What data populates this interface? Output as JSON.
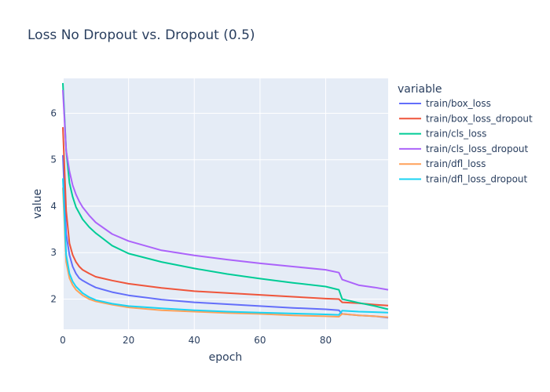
{
  "chart_data": {
    "type": "line",
    "title": "Loss No Dropout vs. Dropout (0.5)",
    "xlabel": "epoch",
    "ylabel": "value",
    "xlim": [
      0,
      99
    ],
    "ylim": [
      1.35,
      6.75
    ],
    "xticks": [
      0,
      20,
      40,
      60,
      80
    ],
    "yticks": [
      2,
      3,
      4,
      5,
      6
    ],
    "grid": true,
    "legend": {
      "title": "variable",
      "placement": "right"
    },
    "series": [
      {
        "name": "train/box_loss",
        "color": "#636efa",
        "x": [
          0,
          1,
          2,
          3,
          4,
          5,
          6,
          8,
          10,
          15,
          20,
          30,
          40,
          50,
          60,
          70,
          80,
          84,
          85,
          90,
          95,
          99
        ],
        "y": [
          5.1,
          3.4,
          2.95,
          2.7,
          2.55,
          2.45,
          2.4,
          2.32,
          2.25,
          2.15,
          2.08,
          1.99,
          1.93,
          1.89,
          1.85,
          1.81,
          1.78,
          1.76,
          1.68,
          1.65,
          1.63,
          1.6
        ]
      },
      {
        "name": "train/box_loss_dropout",
        "color": "#EF553B",
        "x": [
          0,
          1,
          2,
          3,
          4,
          5,
          6,
          8,
          10,
          15,
          20,
          30,
          40,
          50,
          60,
          70,
          80,
          84,
          85,
          90,
          95,
          99
        ],
        "y": [
          5.7,
          3.9,
          3.2,
          2.95,
          2.8,
          2.7,
          2.63,
          2.55,
          2.48,
          2.4,
          2.33,
          2.24,
          2.17,
          2.13,
          2.09,
          2.05,
          2.01,
          2.0,
          1.93,
          1.91,
          1.88,
          1.86
        ]
      },
      {
        "name": "train/cls_loss",
        "color": "#00cc96",
        "x": [
          0,
          1,
          2,
          3,
          4,
          5,
          6,
          8,
          10,
          15,
          20,
          30,
          40,
          50,
          60,
          70,
          80,
          84,
          85,
          90,
          95,
          99
        ],
        "y": [
          6.65,
          5.2,
          4.5,
          4.2,
          3.98,
          3.85,
          3.72,
          3.55,
          3.42,
          3.15,
          2.98,
          2.8,
          2.66,
          2.54,
          2.44,
          2.35,
          2.27,
          2.2,
          2.0,
          1.92,
          1.85,
          1.78
        ]
      },
      {
        "name": "train/cls_loss_dropout",
        "color": "#ab63fa",
        "x": [
          0,
          1,
          2,
          3,
          4,
          5,
          6,
          8,
          10,
          15,
          20,
          30,
          40,
          50,
          60,
          70,
          80,
          84,
          85,
          90,
          95,
          99
        ],
        "y": [
          6.5,
          5.2,
          4.75,
          4.45,
          4.25,
          4.1,
          3.98,
          3.8,
          3.65,
          3.4,
          3.25,
          3.05,
          2.94,
          2.85,
          2.77,
          2.7,
          2.63,
          2.57,
          2.42,
          2.3,
          2.25,
          2.2
        ]
      },
      {
        "name": "train/dfl_loss",
        "color": "#FFA15A",
        "x": [
          0,
          1,
          2,
          3,
          4,
          5,
          6,
          8,
          10,
          15,
          20,
          30,
          40,
          50,
          60,
          70,
          80,
          84,
          85,
          90,
          95,
          99
        ],
        "y": [
          4.4,
          2.8,
          2.45,
          2.3,
          2.2,
          2.14,
          2.08,
          2.0,
          1.95,
          1.88,
          1.82,
          1.76,
          1.73,
          1.7,
          1.68,
          1.65,
          1.63,
          1.62,
          1.68,
          1.65,
          1.63,
          1.61
        ]
      },
      {
        "name": "train/dfl_loss_dropout",
        "color": "#19d3f3",
        "x": [
          0,
          1,
          2,
          3,
          4,
          5,
          6,
          8,
          10,
          15,
          20,
          30,
          40,
          50,
          60,
          70,
          80,
          84,
          85,
          90,
          95,
          99
        ],
        "y": [
          4.6,
          2.95,
          2.55,
          2.38,
          2.27,
          2.2,
          2.13,
          2.04,
          1.98,
          1.9,
          1.85,
          1.8,
          1.76,
          1.73,
          1.71,
          1.69,
          1.67,
          1.66,
          1.75,
          1.73,
          1.72,
          1.71
        ]
      }
    ]
  }
}
